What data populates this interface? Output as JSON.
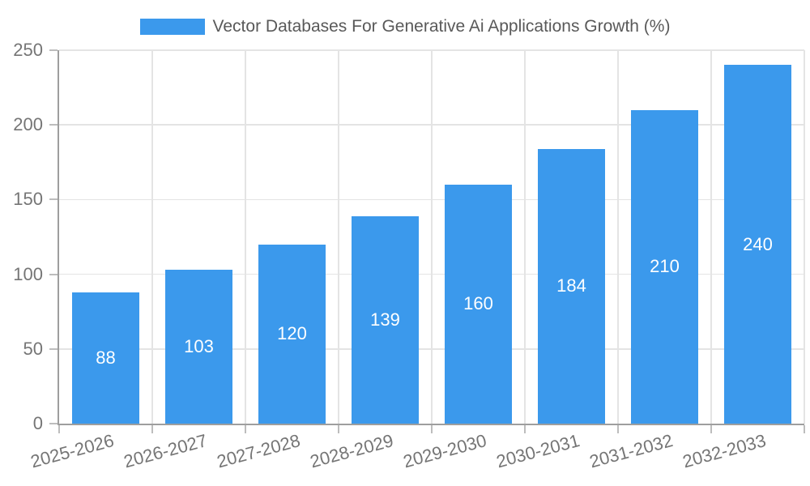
{
  "chart_data": {
    "type": "bar",
    "title": "Vector Databases For Generative Ai Applications Growth (%)",
    "categories": [
      "2025-2026",
      "2026-2027",
      "2027-2028",
      "2028-2029",
      "2029-2030",
      "2030-2031",
      "2031-2032",
      "2032-2033"
    ],
    "values": [
      88,
      103,
      120,
      139,
      160,
      184,
      210,
      240
    ],
    "xlabel": "",
    "ylabel": "",
    "ylim": [
      0,
      250
    ],
    "yticks": [
      0,
      50,
      100,
      150,
      200,
      250
    ],
    "grid": true,
    "legend_position": "top",
    "x_label_rotation_deg": -15,
    "bar_labels_inside": true,
    "colors": {
      "bar": "#3B99EC",
      "bar_label": "#FFFFFF",
      "axis": "#9E9E9E",
      "grid": "#E4E4E4",
      "tick": "#BDBDBD",
      "tick_text": "#757575",
      "title_text": "#595959"
    }
  }
}
